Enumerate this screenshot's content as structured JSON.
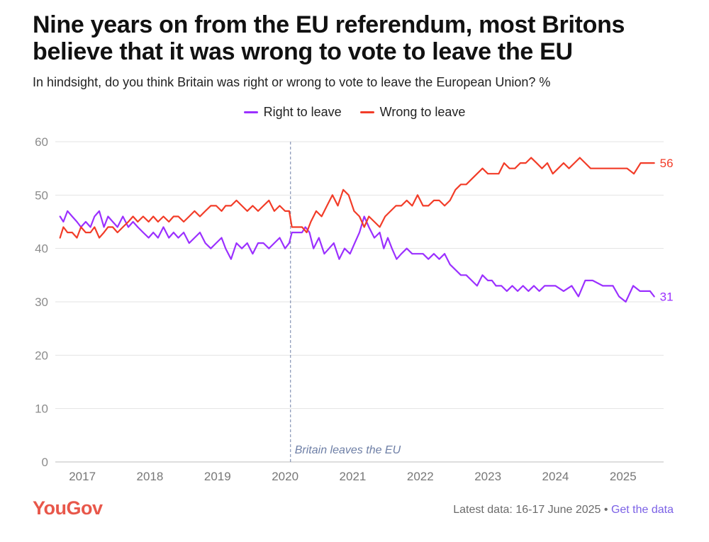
{
  "title": "Nine years on from the EU referendum, most Britons believe that it was wrong to vote to leave the EU",
  "subtitle": "In hindsight, do you think Britain was right or wrong to vote to leave the European Union? %",
  "footer": {
    "latest": "Latest data: 16-17 June 2025",
    "separator": "•",
    "link": "Get the data"
  },
  "brand": {
    "logo": "YouGov"
  },
  "colors": {
    "right": "#9b30ff",
    "wrong": "#f23c28",
    "grid": "#e3e3e3",
    "axis_text": "#8c8c8c",
    "annotation": "#6e7fa6"
  },
  "chart_data": {
    "type": "line",
    "ylim": [
      0,
      60
    ],
    "yticks": [
      0,
      10,
      20,
      30,
      40,
      50,
      60
    ],
    "xlim": [
      2016.6,
      2025.6
    ],
    "xticks": [
      2017,
      2018,
      2019,
      2020,
      2021,
      2022,
      2023,
      2024,
      2025
    ],
    "annotation": {
      "x": 2020.08,
      "label": "Britain leaves the EU"
    },
    "series": [
      {
        "name": "Right to leave",
        "key": "right",
        "end_label": "31",
        "points": [
          [
            2016.67,
            46
          ],
          [
            2016.72,
            45
          ],
          [
            2016.78,
            47
          ],
          [
            2016.85,
            46
          ],
          [
            2016.92,
            45
          ],
          [
            2016.98,
            44
          ],
          [
            2017.05,
            45
          ],
          [
            2017.12,
            44
          ],
          [
            2017.18,
            46
          ],
          [
            2017.25,
            47
          ],
          [
            2017.32,
            44
          ],
          [
            2017.38,
            46
          ],
          [
            2017.45,
            45
          ],
          [
            2017.52,
            44
          ],
          [
            2017.6,
            46
          ],
          [
            2017.68,
            44
          ],
          [
            2017.75,
            45
          ],
          [
            2017.82,
            44
          ],
          [
            2017.9,
            43
          ],
          [
            2017.98,
            42
          ],
          [
            2018.05,
            43
          ],
          [
            2018.12,
            42
          ],
          [
            2018.2,
            44
          ],
          [
            2018.28,
            42
          ],
          [
            2018.35,
            43
          ],
          [
            2018.42,
            42
          ],
          [
            2018.5,
            43
          ],
          [
            2018.58,
            41
          ],
          [
            2018.66,
            42
          ],
          [
            2018.74,
            43
          ],
          [
            2018.82,
            41
          ],
          [
            2018.9,
            40
          ],
          [
            2018.98,
            41
          ],
          [
            2019.06,
            42
          ],
          [
            2019.12,
            40
          ],
          [
            2019.2,
            38
          ],
          [
            2019.28,
            41
          ],
          [
            2019.36,
            40
          ],
          [
            2019.44,
            41
          ],
          [
            2019.52,
            39
          ],
          [
            2019.6,
            41
          ],
          [
            2019.68,
            41
          ],
          [
            2019.76,
            40
          ],
          [
            2019.84,
            41
          ],
          [
            2019.92,
            42
          ],
          [
            2020.0,
            40
          ],
          [
            2020.06,
            41
          ],
          [
            2020.1,
            43
          ],
          [
            2020.18,
            43
          ],
          [
            2020.25,
            43
          ],
          [
            2020.3,
            44
          ],
          [
            2020.36,
            43
          ],
          [
            2020.42,
            40
          ],
          [
            2020.5,
            42
          ],
          [
            2020.58,
            39
          ],
          [
            2020.65,
            40
          ],
          [
            2020.72,
            41
          ],
          [
            2020.8,
            38
          ],
          [
            2020.88,
            40
          ],
          [
            2020.96,
            39
          ],
          [
            2021.03,
            41
          ],
          [
            2021.1,
            43
          ],
          [
            2021.17,
            46
          ],
          [
            2021.24,
            44
          ],
          [
            2021.32,
            42
          ],
          [
            2021.4,
            43
          ],
          [
            2021.46,
            40
          ],
          [
            2021.52,
            42
          ],
          [
            2021.58,
            40
          ],
          [
            2021.65,
            38
          ],
          [
            2021.72,
            39
          ],
          [
            2021.8,
            40
          ],
          [
            2021.88,
            39
          ],
          [
            2021.96,
            39
          ],
          [
            2022.04,
            39
          ],
          [
            2022.12,
            38
          ],
          [
            2022.2,
            39
          ],
          [
            2022.28,
            38
          ],
          [
            2022.36,
            39
          ],
          [
            2022.44,
            37
          ],
          [
            2022.52,
            36
          ],
          [
            2022.6,
            35
          ],
          [
            2022.68,
            35
          ],
          [
            2022.76,
            34
          ],
          [
            2022.84,
            33
          ],
          [
            2022.92,
            35
          ],
          [
            2023.0,
            34
          ],
          [
            2023.06,
            34
          ],
          [
            2023.12,
            33
          ],
          [
            2023.2,
            33
          ],
          [
            2023.28,
            32
          ],
          [
            2023.36,
            33
          ],
          [
            2023.44,
            32
          ],
          [
            2023.52,
            33
          ],
          [
            2023.6,
            32
          ],
          [
            2023.68,
            33
          ],
          [
            2023.76,
            32
          ],
          [
            2023.84,
            33
          ],
          [
            2023.92,
            33
          ],
          [
            2024.0,
            33
          ],
          [
            2024.12,
            32
          ],
          [
            2024.24,
            33
          ],
          [
            2024.34,
            31
          ],
          [
            2024.44,
            34
          ],
          [
            2024.55,
            34
          ],
          [
            2024.7,
            33
          ],
          [
            2024.85,
            33
          ],
          [
            2024.94,
            31
          ],
          [
            2025.04,
            30
          ],
          [
            2025.15,
            33
          ],
          [
            2025.25,
            32
          ],
          [
            2025.34,
            32
          ],
          [
            2025.4,
            32
          ],
          [
            2025.46,
            31
          ]
        ]
      },
      {
        "name": "Wrong to leave",
        "key": "wrong",
        "end_label": "56",
        "points": [
          [
            2016.67,
            42
          ],
          [
            2016.72,
            44
          ],
          [
            2016.78,
            43
          ],
          [
            2016.85,
            43
          ],
          [
            2016.92,
            42
          ],
          [
            2016.98,
            44
          ],
          [
            2017.05,
            43
          ],
          [
            2017.12,
            43
          ],
          [
            2017.18,
            44
          ],
          [
            2017.25,
            42
          ],
          [
            2017.32,
            43
          ],
          [
            2017.38,
            44
          ],
          [
            2017.45,
            44
          ],
          [
            2017.52,
            43
          ],
          [
            2017.6,
            44
          ],
          [
            2017.68,
            45
          ],
          [
            2017.75,
            46
          ],
          [
            2017.82,
            45
          ],
          [
            2017.9,
            46
          ],
          [
            2017.98,
            45
          ],
          [
            2018.05,
            46
          ],
          [
            2018.12,
            45
          ],
          [
            2018.2,
            46
          ],
          [
            2018.28,
            45
          ],
          [
            2018.35,
            46
          ],
          [
            2018.42,
            46
          ],
          [
            2018.5,
            45
          ],
          [
            2018.58,
            46
          ],
          [
            2018.66,
            47
          ],
          [
            2018.74,
            46
          ],
          [
            2018.82,
            47
          ],
          [
            2018.9,
            48
          ],
          [
            2018.98,
            48
          ],
          [
            2019.06,
            47
          ],
          [
            2019.12,
            48
          ],
          [
            2019.2,
            48
          ],
          [
            2019.28,
            49
          ],
          [
            2019.36,
            48
          ],
          [
            2019.44,
            47
          ],
          [
            2019.52,
            48
          ],
          [
            2019.6,
            47
          ],
          [
            2019.68,
            48
          ],
          [
            2019.76,
            49
          ],
          [
            2019.84,
            47
          ],
          [
            2019.92,
            48
          ],
          [
            2020.0,
            47
          ],
          [
            2020.06,
            47
          ],
          [
            2020.1,
            44
          ],
          [
            2020.18,
            44
          ],
          [
            2020.25,
            44
          ],
          [
            2020.32,
            43
          ],
          [
            2020.38,
            45
          ],
          [
            2020.46,
            47
          ],
          [
            2020.54,
            46
          ],
          [
            2020.62,
            48
          ],
          [
            2020.7,
            50
          ],
          [
            2020.78,
            48
          ],
          [
            2020.86,
            51
          ],
          [
            2020.94,
            50
          ],
          [
            2021.02,
            47
          ],
          [
            2021.1,
            46
          ],
          [
            2021.17,
            44
          ],
          [
            2021.24,
            46
          ],
          [
            2021.32,
            45
          ],
          [
            2021.4,
            44
          ],
          [
            2021.48,
            46
          ],
          [
            2021.56,
            47
          ],
          [
            2021.64,
            48
          ],
          [
            2021.72,
            48
          ],
          [
            2021.8,
            49
          ],
          [
            2021.88,
            48
          ],
          [
            2021.96,
            50
          ],
          [
            2022.04,
            48
          ],
          [
            2022.12,
            48
          ],
          [
            2022.2,
            49
          ],
          [
            2022.28,
            49
          ],
          [
            2022.36,
            48
          ],
          [
            2022.44,
            49
          ],
          [
            2022.52,
            51
          ],
          [
            2022.6,
            52
          ],
          [
            2022.68,
            52
          ],
          [
            2022.76,
            53
          ],
          [
            2022.84,
            54
          ],
          [
            2022.92,
            55
          ],
          [
            2023.0,
            54
          ],
          [
            2023.08,
            54
          ],
          [
            2023.16,
            54
          ],
          [
            2023.24,
            56
          ],
          [
            2023.32,
            55
          ],
          [
            2023.4,
            55
          ],
          [
            2023.48,
            56
          ],
          [
            2023.56,
            56
          ],
          [
            2023.64,
            57
          ],
          [
            2023.72,
            56
          ],
          [
            2023.8,
            55
          ],
          [
            2023.88,
            56
          ],
          [
            2023.96,
            54
          ],
          [
            2024.04,
            55
          ],
          [
            2024.12,
            56
          ],
          [
            2024.2,
            55
          ],
          [
            2024.28,
            56
          ],
          [
            2024.36,
            57
          ],
          [
            2024.44,
            56
          ],
          [
            2024.52,
            55
          ],
          [
            2024.62,
            55
          ],
          [
            2024.74,
            55
          ],
          [
            2024.86,
            55
          ],
          [
            2024.96,
            55
          ],
          [
            2025.06,
            55
          ],
          [
            2025.16,
            54
          ],
          [
            2025.26,
            56
          ],
          [
            2025.36,
            56
          ],
          [
            2025.46,
            56
          ]
        ]
      }
    ]
  }
}
